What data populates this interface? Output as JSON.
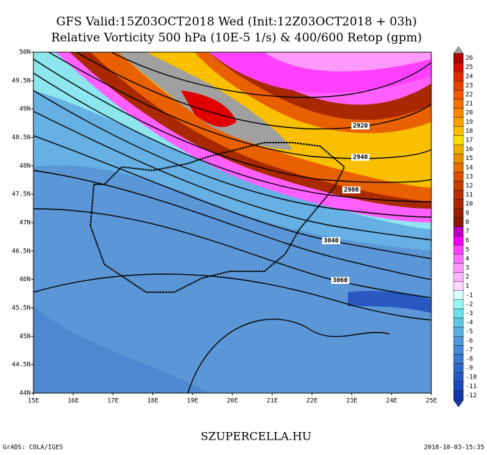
{
  "header": {
    "title": "GFS Valid:15Z03OCT2018 Wed (Init:12Z03OCT2018 + 03h)",
    "subtitle": "Relative Vorticity 500 hPa (10E-5 1/s) & 400/600 Retop (gpm)"
  },
  "lat_labels": [
    "50N",
    "49.5N",
    "49N",
    "48.5N",
    "48N",
    "47.5N",
    "47N",
    "46.5N",
    "46N",
    "45.5N",
    "45N",
    "44.5N",
    "44N"
  ],
  "lon_labels": [
    "15E",
    "16E",
    "17E",
    "18E",
    "19E",
    "20E",
    "21E",
    "22E",
    "23E",
    "24E",
    "25E"
  ],
  "contour_labels": [
    "2920",
    "2940",
    "2980",
    "3040",
    "3060"
  ],
  "colorbar": [
    {
      "label": "26",
      "color": "#b00000"
    },
    {
      "label": "25",
      "color": "#d01000"
    },
    {
      "label": "24",
      "color": "#e02800"
    },
    {
      "label": "23",
      "color": "#e84000"
    },
    {
      "label": "22",
      "color": "#f05800"
    },
    {
      "label": "21",
      "color": "#f07000"
    },
    {
      "label": "20",
      "color": "#f88800"
    },
    {
      "label": "19",
      "color": "#f8a000"
    },
    {
      "label": "18",
      "color": "#f8c000"
    },
    {
      "label": "17",
      "color": "#f8e000"
    },
    {
      "label": "16",
      "color": "#f0b000"
    },
    {
      "label": "15",
      "color": "#e89000"
    },
    {
      "label": "14",
      "color": "#e07000"
    },
    {
      "label": "13",
      "color": "#d85000"
    },
    {
      "label": "12",
      "color": "#c84000"
    },
    {
      "label": "11",
      "color": "#b83000"
    },
    {
      "label": "10",
      "color": "#a82800"
    },
    {
      "label": "9",
      "color": "#982000"
    },
    {
      "label": "8",
      "color": "#881800"
    },
    {
      "label": "7",
      "color": "#c000c0"
    },
    {
      "label": "6",
      "color": "#f000f0"
    },
    {
      "label": "5",
      "color": "#ff40ff"
    },
    {
      "label": "4",
      "color": "#ff70ff"
    },
    {
      "label": "3",
      "color": "#ff98ff"
    },
    {
      "label": "2",
      "color": "#ffb8ff"
    },
    {
      "label": "1",
      "color": "#ffd8ff"
    },
    {
      "label": "-1",
      "color": "#d8ffff"
    },
    {
      "label": "-2",
      "color": "#98f8f8"
    },
    {
      "label": "-3",
      "color": "#70e0e8"
    },
    {
      "label": "-4",
      "color": "#60c8e0"
    },
    {
      "label": "-5",
      "color": "#58b0e0"
    },
    {
      "label": "-6",
      "color": "#5098d8"
    },
    {
      "label": "-7",
      "color": "#4888d8"
    },
    {
      "label": "-8",
      "color": "#3c78d0"
    },
    {
      "label": "-9",
      "color": "#3068c8"
    },
    {
      "label": "-10",
      "color": "#2858c0"
    },
    {
      "label": "-11",
      "color": "#2048b8"
    },
    {
      "label": "-12",
      "color": "#1838a8"
    }
  ],
  "footer": {
    "site": "SZUPERCELLA.HU",
    "credit": "GrADS: COLA/IGES",
    "timestamp": "2018-10-03-15:35"
  }
}
